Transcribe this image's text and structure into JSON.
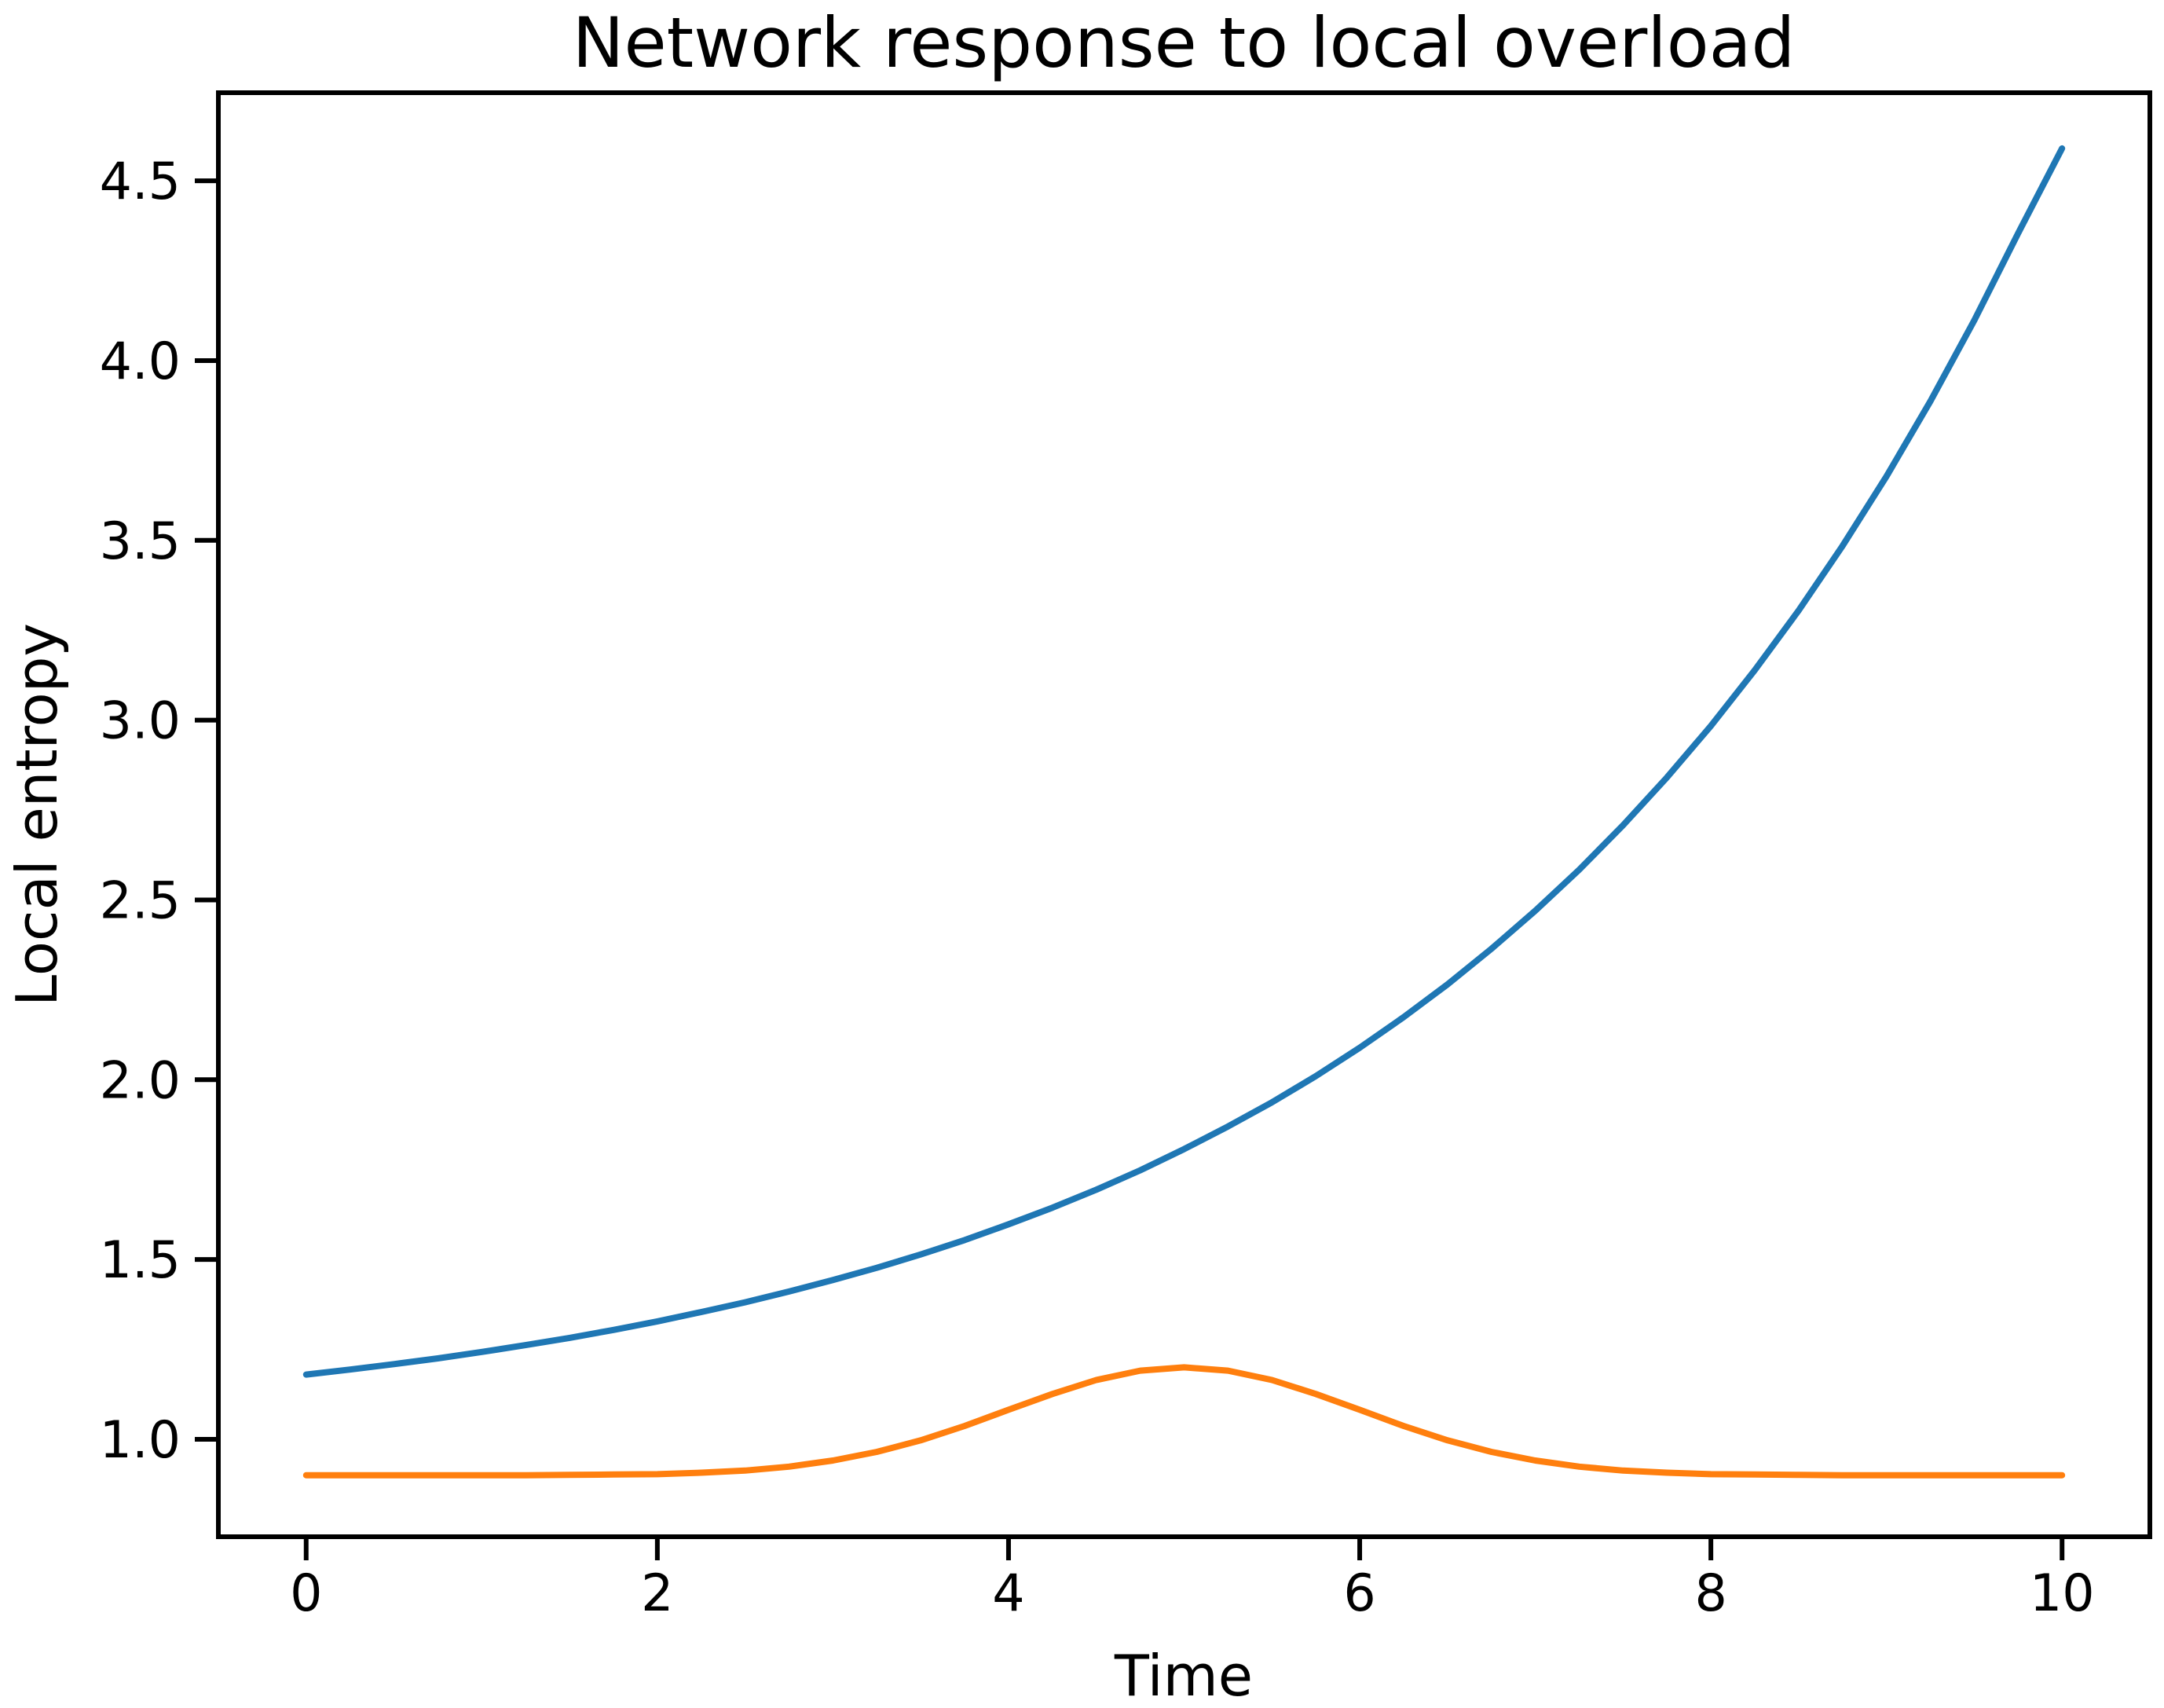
{
  "chart_data": {
    "type": "line",
    "title": "Network response to local overload",
    "xlabel": "Time",
    "ylabel": "Local entropy",
    "xlim": [
      -0.5,
      10.5
    ],
    "ylim": [
      0.729,
      4.745
    ],
    "xticks": [
      0,
      2,
      4,
      6,
      8,
      10
    ],
    "xtick_labels": [
      "0",
      "2",
      "4",
      "6",
      "8",
      "10"
    ],
    "yticks": [
      1.0,
      1.5,
      2.0,
      2.5,
      3.0,
      3.5,
      4.0,
      4.5
    ],
    "ytick_labels": [
      "1.0",
      "1.5",
      "2.0",
      "2.5",
      "3.0",
      "3.5",
      "4.0",
      "4.5"
    ],
    "grid": false,
    "legend": "none",
    "background_color": "#ffffff",
    "axis_color": "#000000",
    "x": [
      0,
      0.25,
      0.5,
      0.75,
      1,
      1.25,
      1.5,
      1.75,
      2,
      2.25,
      2.5,
      2.75,
      3,
      3.25,
      3.5,
      3.75,
      4,
      4.25,
      4.5,
      4.75,
      5,
      5.25,
      5.5,
      5.75,
      6,
      6.25,
      6.5,
      6.75,
      7,
      7.25,
      7.5,
      7.75,
      8,
      8.25,
      8.5,
      8.75,
      9,
      9.25,
      9.5,
      9.75,
      10
    ],
    "series": [
      {
        "id": "blue-series",
        "color": "#1f77b4",
        "line_width": 8,
        "values": [
          1.18,
          1.194,
          1.209,
          1.225,
          1.243,
          1.262,
          1.282,
          1.304,
          1.328,
          1.354,
          1.381,
          1.411,
          1.443,
          1.477,
          1.514,
          1.554,
          1.598,
          1.644,
          1.694,
          1.748,
          1.807,
          1.87,
          1.937,
          2.01,
          2.089,
          2.174,
          2.265,
          2.364,
          2.47,
          2.584,
          2.708,
          2.841,
          2.984,
          3.139,
          3.305,
          3.485,
          3.678,
          3.887,
          4.112,
          4.354,
          4.59
        ]
      },
      {
        "id": "orange-series",
        "color": "#ff7f0e",
        "line_width": 8,
        "values": [
          0.9,
          0.9,
          0.9,
          0.9,
          0.9,
          0.9,
          0.901,
          0.902,
          0.903,
          0.907,
          0.913,
          0.924,
          0.941,
          0.965,
          0.997,
          1.037,
          1.082,
          1.126,
          1.165,
          1.191,
          1.2,
          1.191,
          1.165,
          1.126,
          1.082,
          1.037,
          0.997,
          0.965,
          0.941,
          0.924,
          0.913,
          0.907,
          0.903,
          0.902,
          0.901,
          0.9,
          0.9,
          0.9,
          0.9,
          0.9,
          0.9
        ]
      }
    ]
  }
}
